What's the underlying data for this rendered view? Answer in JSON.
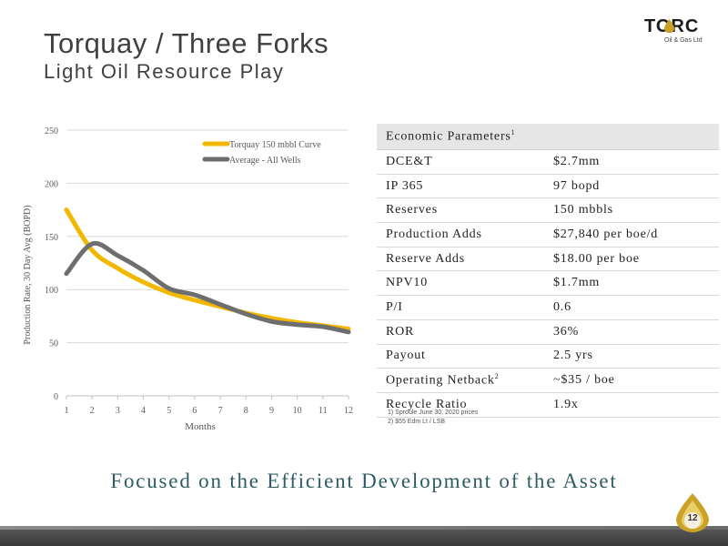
{
  "slide": {
    "title": "Torquay / Three Forks",
    "subtitle": "Light Oil Resource Play",
    "tagline": "Focused on the Efficient Development of the Asset",
    "page_number": "12"
  },
  "logo": {
    "word": "TORC",
    "sub": "Oil & Gas Ltd"
  },
  "chart_data": {
    "type": "line",
    "xlabel": "Months",
    "ylabel": "Production Rate, 30 Day Avg (BOPD)",
    "x": [
      1,
      2,
      3,
      4,
      5,
      6,
      7,
      8,
      9,
      10,
      11,
      12
    ],
    "xlim": [
      1,
      12
    ],
    "ylim": [
      0,
      250
    ],
    "yticks": [
      0,
      50,
      100,
      150,
      200,
      250
    ],
    "legend_position": "top-right",
    "grid": "horizontal",
    "series": [
      {
        "name": "Torquay 150 mbbl Curve",
        "color": "#f2b800",
        "values": [
          175,
          137,
          120,
          107,
          97,
          90,
          84,
          78,
          73,
          69,
          66,
          63
        ]
      },
      {
        "name": "Average - All Wells",
        "color": "#6d6e70",
        "values": [
          115,
          143,
          132,
          118,
          101,
          95,
          86,
          77,
          70,
          67,
          65,
          60
        ]
      }
    ]
  },
  "economics": {
    "header": "Economic Parameters",
    "header_sup": "1",
    "rows": [
      {
        "label": "DCE&T",
        "sup": "",
        "value": "$2.7mm"
      },
      {
        "label": "IP 365",
        "sup": "",
        "value": "97 bopd"
      },
      {
        "label": "Reserves",
        "sup": "",
        "value": "150 mbbls"
      },
      {
        "label": "Production Adds",
        "sup": "",
        "value": "$27,840 per boe/d"
      },
      {
        "label": "Reserve Adds",
        "sup": "",
        "value": "$18.00 per boe"
      },
      {
        "label": "NPV10",
        "sup": "",
        "value": "$1.7mm"
      },
      {
        "label": "P/I",
        "sup": "",
        "value": "0.6"
      },
      {
        "label": "ROR",
        "sup": "",
        "value": "36%"
      },
      {
        "label": "Payout",
        "sup": "",
        "value": "2.5 yrs"
      },
      {
        "label": "Operating Netback",
        "sup": "2",
        "value": "~$35 / boe"
      },
      {
        "label": "Recycle Ratio",
        "sup": "",
        "value": "1.9x"
      }
    ]
  },
  "notes": [
    "1)   Sproule June 30, 2020 prices",
    "2)   $55 Edm Lt / LSB"
  ]
}
